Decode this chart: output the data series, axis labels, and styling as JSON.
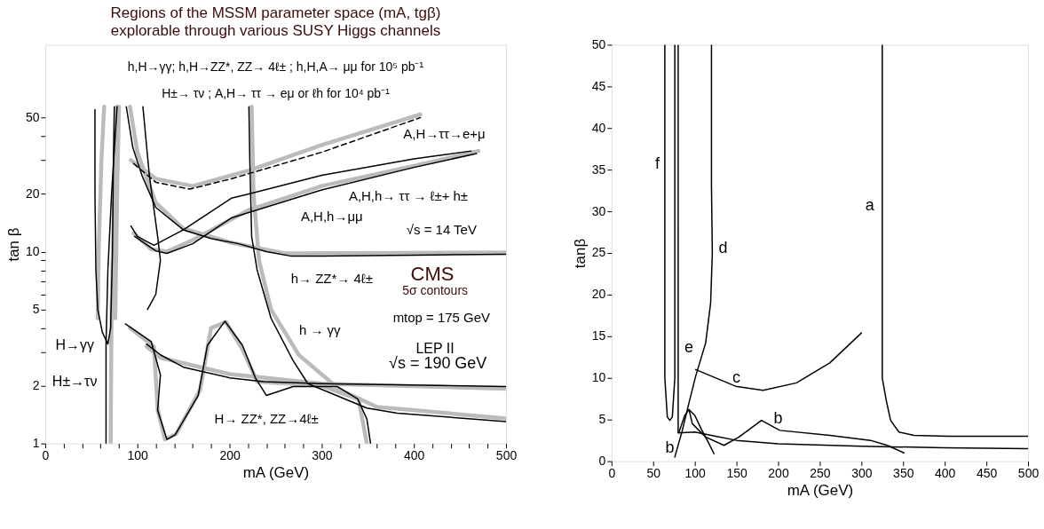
{
  "chart_data": [
    {
      "type": "line",
      "title": "Regions of the MSSM parameter space  (mA, tgβ)",
      "subtitle": "explorable through various  SUSY Higgs channels",
      "xlabel": "mA  (GeV)",
      "ylabel": "tan β",
      "log": "y",
      "grid": false,
      "xlim": [
        0,
        500
      ],
      "ylim": [
        1,
        120
      ],
      "xticks": [
        0,
        {
          "value": 20,
          "label": null
        },
        {
          "value": 40,
          "label": null
        },
        {
          "value": 60,
          "label": null
        },
        {
          "value": 80,
          "label": null
        },
        100,
        {
          "value": 120,
          "label": null
        },
        {
          "value": 140,
          "label": null
        },
        {
          "value": 160,
          "label": null
        },
        {
          "value": 180,
          "label": null
        },
        200,
        {
          "value": 220,
          "label": null
        },
        {
          "value": 240,
          "label": null
        },
        {
          "value": 260,
          "label": null
        },
        {
          "value": 280,
          "label": null
        },
        300,
        {
          "value": 320,
          "label": null
        },
        {
          "value": 340,
          "label": null
        },
        {
          "value": 360,
          "label": null
        },
        {
          "value": 380,
          "label": null
        },
        400,
        {
          "value": 420,
          "label": null
        },
        {
          "value": 440,
          "label": null
        },
        {
          "value": 460,
          "label": null
        },
        {
          "value": 480,
          "label": null
        },
        500
      ],
      "yticks": [
        1,
        2,
        {
          "value": 3,
          "label": null
        },
        {
          "value": 4,
          "label": null
        },
        5,
        {
          "value": 6,
          "label": null
        },
        {
          "value": 7,
          "label": null
        },
        {
          "value": 8,
          "label": null
        },
        {
          "value": 9,
          "label": null
        },
        10,
        20,
        {
          "value": 30,
          "label": null
        },
        {
          "value": 40,
          "label": null
        },
        50
      ],
      "series": [
        {
          "color": "#bbbbbb",
          "x": [
            110,
            125,
            200,
            300,
            500
          ],
          "values": [
            3.2,
            2.8,
            2.3,
            2.05,
            1.93
          ]
        },
        {
          "color": "#bbbbbb",
          "x": [
            224,
            226,
            232,
            245,
            275,
            320,
            360,
            500
          ],
          "values": [
            57,
            20,
            9,
            5,
            2.9,
            1.9,
            1.55,
            1.35
          ]
        },
        {
          "color": "#bbbbbb",
          "x": [
            92,
            100,
            120,
            150,
            200,
            260,
            500
          ],
          "values": [
            57,
            33,
            18,
            13.2,
            11.2,
            9.8,
            9.9
          ]
        },
        {
          "color": "#bbbbbb",
          "x": [
            96,
            115,
            132,
            160,
            221,
            300,
            400,
            470
          ],
          "values": [
            12.5,
            10.3,
            10,
            11.5,
            16.5,
            22,
            28,
            33.5
          ]
        },
        {
          "color": "#bbbbbb",
          "x": [
            93,
            120,
            160,
            221,
            300,
            407
          ],
          "values": [
            30,
            24,
            22,
            26.5,
            36,
            52
          ]
        },
        {
          "color": "#bbbbbb",
          "x": [
            92,
            118,
            122,
            130,
            142,
            168,
            180,
            196,
            214,
            230,
            300,
            340,
            349
          ],
          "values": [
            4,
            3.2,
            1.5,
            1.05,
            1.12,
            1.9,
            4,
            4.3,
            3.1,
            2.1,
            2.0,
            1.7,
            1.0
          ]
        },
        {
          "color": "#bbbbbb",
          "x": [
            71,
            72,
            75,
            78
          ],
          "values": [
            1,
            5,
            20,
            57
          ]
        },
        {
          "color": "#bbbbbb",
          "x": [
            76,
            78,
            80
          ],
          "values": [
            4.5,
            20,
            57
          ]
        },
        {
          "color": "#bbbbbb",
          "x": [
            57,
            58,
            61,
            64
          ],
          "values": [
            4.5,
            10,
            30,
            57
          ]
        },
        {
          "color": "#000000",
          "x": [
            54,
            54,
            55,
            57,
            62,
            68,
            71,
            73,
            74,
            75
          ],
          "values": [
            55,
            20,
            8,
            5,
            3.8,
            3.3,
            4,
            10,
            30,
            57
          ]
        },
        {
          "color": "#000000",
          "x": [
            66,
            66,
            68,
            72,
            78
          ],
          "values": [
            1,
            3.3,
            8,
            20,
            57
          ]
        },
        {
          "color": "#000000",
          "x": [
            106,
            113,
            122,
            125,
            120,
            111
          ],
          "values": [
            57,
            25,
            12,
            9,
            6,
            5
          ]
        },
        {
          "color": "#000000",
          "x": [
            88,
            95,
            105,
            120,
            150,
            180,
            210,
            240,
            266,
            300,
            400,
            500
          ],
          "values": [
            57,
            35,
            25,
            17,
            13,
            11.7,
            11,
            10,
            9.5,
            9.5,
            9.6,
            9.7
          ]
        },
        {
          "color": "#000000",
          "x": [
            93,
            100,
            118,
            150,
            202,
            221,
            300,
            400,
            462
          ],
          "values": [
            13.6,
            12,
            10.8,
            13,
            19,
            20,
            25,
            30.5,
            33.5
          ]
        },
        {
          "color": "#000000",
          "x": [
            97,
            120,
            132,
            160,
            202,
            300,
            400,
            468
          ],
          "values": [
            12,
            10.1,
            9.8,
            11,
            15,
            21,
            27.5,
            32.5
          ]
        },
        {
          "color": "#000000",
          "line_style": "dashed",
          "x": [
            96,
            120,
            157,
            202,
            300,
            407
          ],
          "values": [
            28.8,
            23,
            21.2,
            24,
            33,
            50
          ]
        },
        {
          "color": "#000000",
          "x": [
            87,
            115,
            125,
            122,
            132,
            141,
            166,
            176,
            195,
            214,
            228,
            240,
            269,
            317,
            339,
            349,
            353
          ],
          "values": [
            4.2,
            3.4,
            2.28,
            1.49,
            1.05,
            1.11,
            1.78,
            3.25,
            4.34,
            3.25,
            2.2,
            1.78,
            1.98,
            1.98,
            1.71,
            1.34,
            1.0
          ]
        },
        {
          "color": "#000000",
          "x": [
            110,
            125,
            150,
            200,
            237,
            300,
            500
          ],
          "values": [
            3.3,
            2.9,
            2.5,
            2.2,
            2.1,
            2.05,
            1.98
          ]
        },
        {
          "color": "#000000",
          "x": [
            221,
            222,
            224,
            230,
            245,
            269,
            285,
            349,
            382,
            500
          ],
          "values": [
            57,
            30,
            12,
            8,
            4.5,
            2.7,
            2.05,
            1.53,
            1.44,
            1.3
          ]
        }
      ],
      "annotations": [
        "h,H→γγ;  h,H→ZZ*, ZZ→ 4ℓ± ; h,H,A→ μμ for 10⁵ pb⁻¹",
        "H±→ τν ; A,H→ ττ → eμ  or ℓh   for 10⁴ pb⁻¹",
        "A,H→ττ→e+μ",
        "A,H,h→ ττ → ℓ±+ h±",
        "A,H,h→μμ",
        "√s = 14 TeV",
        "h→ ZZ*→ 4ℓ±",
        "CMS",
        "5σ contours",
        "mtop = 175 GeV",
        "h → γγ",
        "LEP II",
        "√s = 190 GeV",
        "H→γγ",
        "H±→τν",
        "H→ ZZ*, ZZ→4ℓ±"
      ]
    },
    {
      "type": "line",
      "xlabel": "mA (GeV)",
      "ylabel": "tanβ",
      "grid": false,
      "xlim": [
        0,
        500
      ],
      "ylim": [
        0,
        50
      ],
      "xticks": [
        0,
        50,
        100,
        150,
        200,
        250,
        300,
        350,
        400,
        450,
        500
      ],
      "yticks": [
        0,
        5,
        10,
        15,
        20,
        25,
        30,
        35,
        40,
        45,
        50
      ],
      "series": [
        {
          "color": "#000000",
          "x": [
            64,
            64,
            67,
            70,
            73,
            76,
            76
          ],
          "values": [
            50,
            10,
            5.3,
            4.9,
            5.3,
            10,
            50
          ]
        },
        {
          "color": "#000000",
          "x": [
            80,
            80,
            100,
            125,
            150,
            200,
            300,
            400,
            500
          ],
          "values": [
            50,
            3.4,
            3.5,
            3,
            2.5,
            2.1,
            1.8,
            1.6,
            1.5
          ]
        },
        {
          "color": "#000000",
          "x": [
            120,
            120,
            121,
            119,
            113,
            101,
            93,
            85,
            76
          ],
          "values": [
            50,
            33,
            25,
            19,
            14.2,
            10.2,
            7,
            3.7,
            0.5
          ]
        },
        {
          "color": "#000000",
          "x": [
            81,
            88,
            93,
            100,
            108,
            115,
            123
          ],
          "values": [
            3.5,
            5.5,
            6.2,
            5.5,
            3.8,
            2.5,
            0.9
          ]
        },
        {
          "color": "#000000",
          "x": [
            93,
            97,
            113,
            135,
            153,
            180,
            202,
            262,
            311,
            331,
            351
          ],
          "values": [
            6.2,
            4.5,
            2.9,
            1.9,
            2.9,
            4.9,
            3.7,
            3.1,
            2.5,
            1.9,
            1.0
          ]
        },
        {
          "color": "#000000",
          "x": [
            101,
            149,
            182,
            222,
            262,
            300
          ],
          "values": [
            11,
            9,
            8.5,
            9.4,
            11.8,
            15.4
          ]
        },
        {
          "color": "#000000",
          "x": [
            325,
            325,
            330,
            335,
            345,
            363,
            404,
            500
          ],
          "values": [
            50,
            10,
            7.2,
            4.9,
            3.5,
            3.1,
            3.0,
            3.0
          ]
        }
      ],
      "annotations": [
        "a",
        "b",
        "b",
        "c",
        "d",
        "e",
        "f"
      ]
    }
  ]
}
